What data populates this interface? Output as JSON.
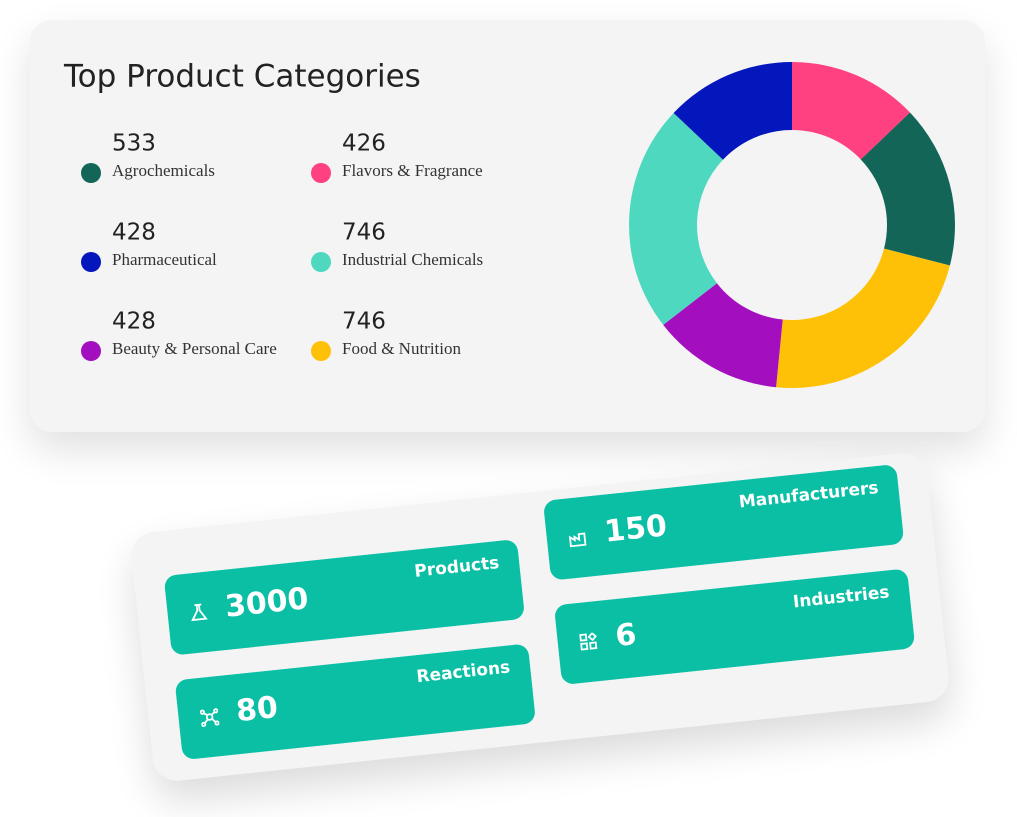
{
  "chart_data": {
    "type": "donut",
    "title": "Top Product Categories",
    "categories": [
      "Flavors & Fragrance",
      "Agrochemicals",
      "Food & Nutrition",
      "Beauty & Personal Care",
      "Industrial Chemicals",
      "Pharmaceutical"
    ],
    "values": [
      426,
      533,
      746,
      428,
      746,
      428
    ],
    "colors": [
      "#ff4081",
      "#136657",
      "#ffc107",
      "#a30fbf",
      "#4fd8c0",
      "#0317bd"
    ]
  },
  "stats": [
    {
      "label": "Products",
      "value": "3000"
    },
    {
      "label": "Manufacturers",
      "value": "150"
    },
    {
      "label": "Reactions",
      "value": "80"
    },
    {
      "label": "Industries",
      "value": "6"
    }
  ]
}
